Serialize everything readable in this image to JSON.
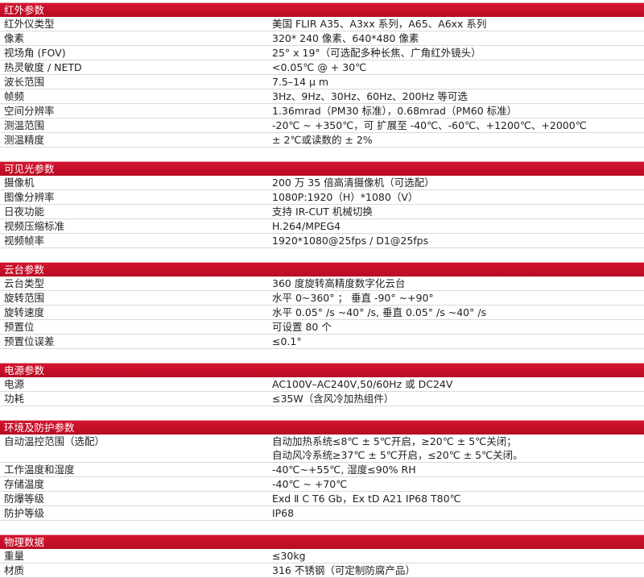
{
  "accent_color": "#c8102e",
  "sections": [
    {
      "title": "红外参数",
      "rows": [
        {
          "label": "红外仪类型",
          "value": "美国 FLIR  A35、A3xx 系列，A65、A6xx 系列"
        },
        {
          "label": "像素",
          "value": " 320* 240 像素、640*480 像素"
        },
        {
          "label": "视场角 (FOV)",
          "value": "25°  x 19°（可选配多种长焦、广角红外镜头）"
        },
        {
          "label": "热灵敏度 / NETD",
          "value": "<0.05℃ @ + 30℃"
        },
        {
          "label": "波长范围",
          "value": "7.5–14 μ m"
        },
        {
          "label": "帧频",
          "value": "3Hz、9Hz、30Hz、60Hz、200Hz 等可选"
        },
        {
          "label": "空间分辨率",
          "value": "1.36mrad（PM30 标准），0.68mrad（PM60 标准）"
        },
        {
          "label": "测温范围",
          "value": " -20℃ ~ +350℃，可 扩展至 -40℃、-60℃、+1200℃、+2000℃"
        },
        {
          "label": "测温精度",
          "value": " ± 2℃或读数的 ± 2%"
        }
      ]
    },
    {
      "title": "可见光参数",
      "rows": [
        {
          "label": "摄像机",
          "value": "200 万 35 倍高清摄像机（可选配）"
        },
        {
          "label": "图像分辨率",
          "value": "1080P:1920（H）*1080（V）"
        },
        {
          "label": "日夜功能",
          "value": "支持 IR-CUT 机械切换"
        },
        {
          "label": "视频压缩标准",
          "value": " H.264/MPEG4"
        },
        {
          "label": "视频帧率",
          "value": "1920*1080@25fps / D1@25fps"
        }
      ]
    },
    {
      "title": "云台参数",
      "rows": [
        {
          "label": "云台类型",
          "value": "360 度旋转高精度数字化云台"
        },
        {
          "label": "旋转范围",
          "value": "水平 0~360° ； 垂直 -90°  ~+90°"
        },
        {
          "label": "旋转速度",
          "value": "水平 0.05°  /s ~40°  /s,    垂直 0.05°  /s ~40°  /s"
        },
        {
          "label": "预置位",
          "value": "可设置 80 个"
        },
        {
          "label": "预置位误差",
          "value": "≤0.1°"
        }
      ]
    },
    {
      "title": "电源参数",
      "rows": [
        {
          "label": "电源",
          "value": "AC100V–AC240V,50/60Hz 或 DC24V"
        },
        {
          "label": "功耗",
          "value": "≤35W（含风冷加热组件）"
        }
      ]
    },
    {
      "title": "环境及防护参数",
      "rows": [
        {
          "label": "自动温控范围（选配）",
          "value": "自动加热系统≤8℃ ± 5℃开启，≥20℃ ± 5℃关闭；\n自动风冷系统≥37℃ ± 5℃开启，≤20℃ ± 5℃关闭。"
        },
        {
          "label": "工作温度和湿度",
          "value": "-40℃~+55℃, 湿度≤90% RH"
        },
        {
          "label": "存储温度",
          "value": "-40℃  ~   +70℃"
        },
        {
          "label": "防爆等级",
          "value": "Exd  Ⅱ C T6 Gb，Ex tD A21 IP68 T80℃"
        },
        {
          "label": "防护等级",
          "value": "IP68"
        }
      ]
    },
    {
      "title": "物理数据",
      "rows": [
        {
          "label": "重量",
          "value": "≤30kg"
        },
        {
          "label": "材质",
          "value": "316 不锈钢（可定制防腐产品）"
        }
      ]
    }
  ]
}
